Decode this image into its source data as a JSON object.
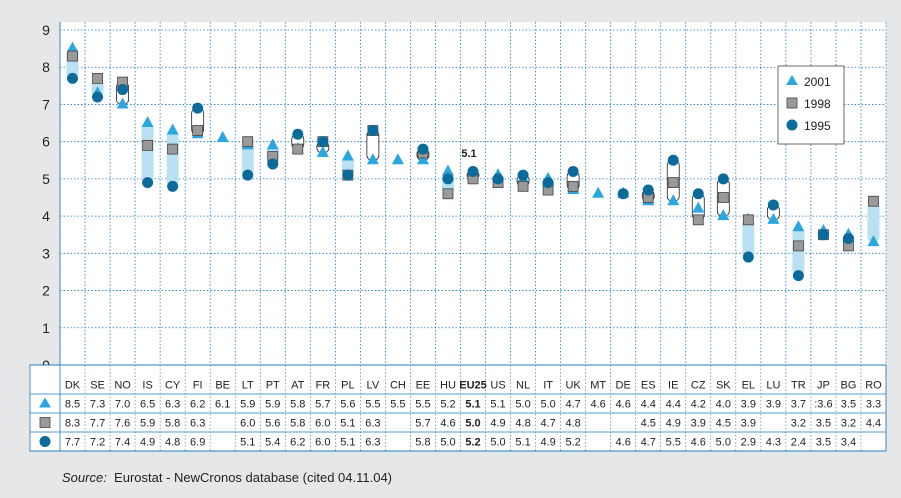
{
  "colors": {
    "background": "#e6e7e8",
    "plot_background": "#ffffff",
    "grid": "#1a7bc0",
    "series_2001": "#2aa6e0",
    "series_1998": "#9a9a9a",
    "series_1995": "#0a6a9a",
    "range_fill": "#b9e0f3"
  },
  "source": {
    "label": "Source:",
    "text": "Eurostat - NewCronos database (cited 04.11.04)"
  },
  "highlight_label": "5.1",
  "chart_data": {
    "type": "scatter",
    "categories": [
      "DK",
      "SE",
      "NO",
      "IS",
      "CY",
      "FI",
      "BE",
      "LT",
      "PT",
      "AT",
      "FR",
      "PL",
      "LV",
      "CH",
      "EE",
      "HU",
      "EU25",
      "US",
      "NL",
      "IT",
      "UK",
      "MT",
      "DE",
      "ES",
      "IE",
      "CZ",
      "SK",
      "EL",
      "LU",
      "TR",
      "JP",
      "BG",
      "RO"
    ],
    "ylim": [
      0,
      9
    ],
    "yticks": [
      "0",
      "1",
      "2",
      "3",
      "4",
      "5",
      "6",
      "7",
      "8",
      "9"
    ],
    "grid": true,
    "legend_position": "top-right",
    "series": [
      {
        "name": "2001",
        "marker": "triangle",
        "values": [
          8.5,
          7.3,
          7.0,
          6.5,
          6.3,
          6.2,
          6.1,
          5.9,
          5.9,
          5.8,
          5.7,
          5.6,
          5.5,
          5.5,
          5.5,
          5.2,
          5.1,
          5.1,
          5.0,
          5.0,
          4.7,
          4.6,
          4.6,
          4.4,
          4.4,
          4.2,
          4.0,
          3.9,
          3.9,
          3.7,
          3.6,
          3.5,
          3.3
        ],
        "labels": [
          "8.5",
          "7.3",
          "7.0",
          "6.5",
          "6.3",
          "6.2",
          "6.1",
          "5.9",
          "5.9",
          "5.8",
          "5.7",
          "5.6",
          "5.5",
          "5.5",
          "5.5",
          "5.2",
          "5.1",
          "5.1",
          "5.0",
          "5.0",
          "4.7",
          "4.6",
          "4.6",
          "4.4",
          "4.4",
          "4.2",
          "4.0",
          "3.9",
          "3.9",
          "3.7",
          ":3.6",
          "3.5",
          "3.3"
        ]
      },
      {
        "name": "1998",
        "marker": "square",
        "values": [
          8.3,
          7.7,
          7.6,
          5.9,
          5.8,
          6.3,
          null,
          6.0,
          5.6,
          5.8,
          6.0,
          5.1,
          6.3,
          null,
          5.7,
          4.6,
          5.0,
          4.9,
          4.8,
          4.7,
          4.8,
          null,
          null,
          4.5,
          4.9,
          3.9,
          4.5,
          3.9,
          null,
          3.2,
          3.5,
          3.2,
          4.4
        ],
        "labels": [
          "8.3",
          "7.7",
          "7.6",
          "5.9",
          "5.8",
          "6.3",
          "",
          "6.0",
          "5.6",
          "5.8",
          "6.0",
          "5.1",
          "6.3",
          "",
          "5.7",
          "4.6",
          "5.0",
          "4.9",
          "4.8",
          "4.7",
          "4.8",
          "",
          "",
          "4.5",
          "4.9",
          "3.9",
          "4.5",
          "3.9",
          "",
          "3.2",
          "3.5",
          "3.2",
          "4.4"
        ]
      },
      {
        "name": "1995",
        "marker": "circle",
        "values": [
          7.7,
          7.2,
          7.4,
          4.9,
          4.8,
          6.9,
          null,
          5.1,
          5.4,
          6.2,
          6.0,
          5.1,
          6.3,
          null,
          5.8,
          5.0,
          5.2,
          5.0,
          5.1,
          4.9,
          5.2,
          null,
          4.6,
          4.7,
          5.5,
          4.6,
          5.0,
          2.9,
          4.3,
          2.4,
          3.5,
          3.4,
          null
        ],
        "labels": [
          "7.7",
          "7.2",
          "7.4",
          "4.9",
          "4.8",
          "6.9",
          "",
          "5.1",
          "5.4",
          "6.2",
          "6.0",
          "5.1",
          "6.3",
          "",
          "5.8",
          "5.0",
          "5.2",
          "5.0",
          "5.1",
          "4.9",
          "5.2",
          "",
          "4.6",
          "4.7",
          "5.5",
          "4.6",
          "5.0",
          "2.9",
          "4.3",
          "2.4",
          "3.5",
          "3.4",
          ""
        ]
      }
    ]
  }
}
